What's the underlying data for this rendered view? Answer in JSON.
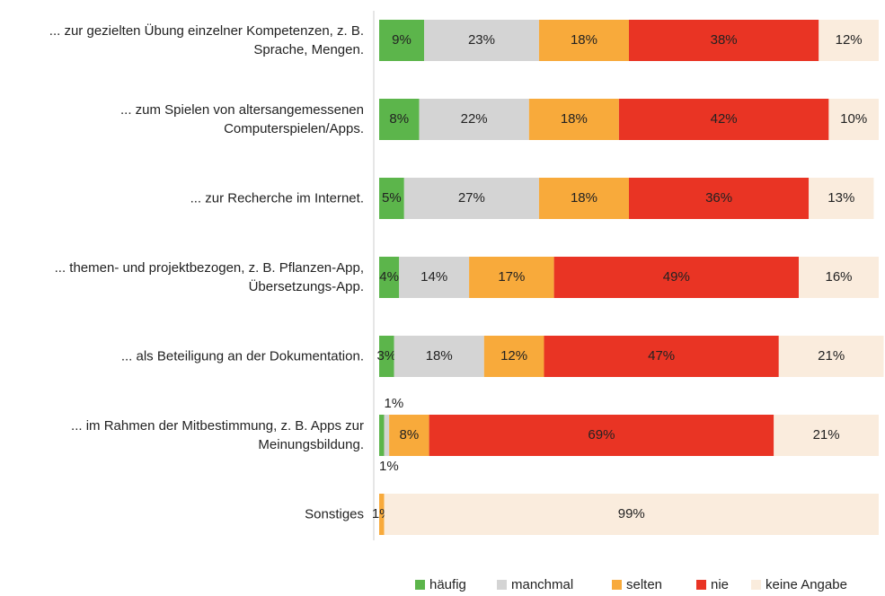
{
  "chart_data": {
    "type": "stacked-bar-horizontal",
    "categories": [
      "... zur gezielten Übung einzelner Kompetenzen, z. B. Sprache, Mengen.",
      "... zum Spielen von altersangemessenen Computerspielen/Apps.",
      "... zur Recherche im Internet.",
      "... themen- und projektbezogen, z. B. Pflanzen-App, Übersetzungs-App.",
      "... als Beteiligung an der Dokumentation.",
      "... im Rahmen der Mitbestimmung, z. B. Apps zur Meinungsbildung.",
      "Sonstiges"
    ],
    "xlim": [
      0,
      100
    ],
    "series": [
      {
        "name": "häufig",
        "color": "#5cb54b",
        "values": [
          9,
          8,
          5,
          4,
          3,
          1,
          null
        ],
        "value_labels": [
          "9%",
          "8%",
          "5%",
          "4%",
          "3%",
          "1%",
          null
        ]
      },
      {
        "name": "manchmal",
        "color": "#d4d4d4",
        "values": [
          23,
          22,
          27,
          14,
          18,
          1,
          null
        ],
        "value_labels": [
          "23%",
          "22%",
          "27%",
          "14%",
          "18%",
          "1%",
          null
        ]
      },
      {
        "name": "selten",
        "color": "#f8aa3b",
        "values": [
          18,
          18,
          18,
          17,
          12,
          8,
          1
        ],
        "value_labels": [
          "18%",
          "18%",
          "18%",
          "17%",
          "12%",
          "8%",
          "1%"
        ]
      },
      {
        "name": "nie",
        "color": "#e93424",
        "values": [
          38,
          42,
          36,
          49,
          47,
          69,
          null
        ],
        "value_labels": [
          "38%",
          "42%",
          "36%",
          "49%",
          "47%",
          "69%",
          null
        ]
      },
      {
        "name": "keine Angabe",
        "color": "#faecdd",
        "values": [
          12,
          10,
          13,
          16,
          21,
          21,
          99
        ],
        "value_labels": [
          "12%",
          "10%",
          "13%",
          "16%",
          "21%",
          "21%",
          "99%"
        ]
      }
    ]
  }
}
